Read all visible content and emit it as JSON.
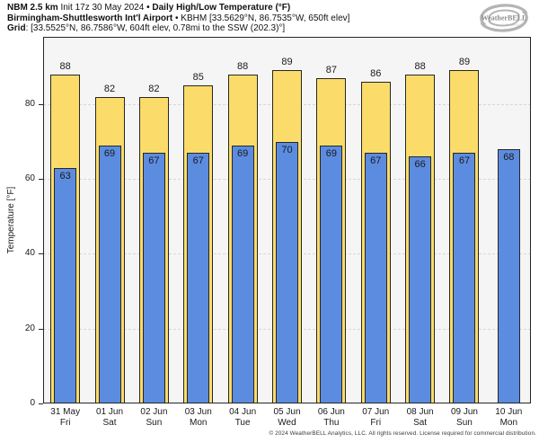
{
  "header": {
    "line1": {
      "model": "NBM 2.5 km",
      "init": " Init 17z 30 May 2024 ",
      "sep": "•",
      "title": " Daily High/Low Temperature (°F)"
    },
    "line2": {
      "station": "Birmingham-Shuttlesworth Int'l Airport",
      "sep": "•",
      "details": " KBHM [33.5629°N, 86.7535°W, 650ft elev]"
    },
    "line3": {
      "label": "Grid",
      "details": ": [33.5525°N, 86.7586°W, 604ft elev, 0.78mi to the SSW (202.3)°]"
    }
  },
  "logo": {
    "name": "WeatherBELL",
    "subtext": "Analytics LLC",
    "icon": "hurricane-swirl-icon",
    "color": "#a8a8a8"
  },
  "chart_data": {
    "type": "bar",
    "title": "Daily High/Low Temperature (°F)",
    "xlabel": "",
    "ylabel": "Temperature [°F]",
    "ylim": [
      0,
      98
    ],
    "yticks": [
      0,
      20,
      40,
      60,
      80
    ],
    "grid": "horizontal dashed at yticks",
    "legend": "none",
    "plot_bg": "#f5f5f5",
    "series": [
      {
        "name": "High",
        "color": "#fbdc6a",
        "border": "#262626"
      },
      {
        "name": "Low",
        "color": "#5c8ce0",
        "border": "#262626"
      }
    ],
    "days": [
      {
        "date": "31 May",
        "weekday": "Fri",
        "high": 88,
        "low": 63
      },
      {
        "date": "01 Jun",
        "weekday": "Sat",
        "high": 82,
        "low": 69
      },
      {
        "date": "02 Jun",
        "weekday": "Sun",
        "high": 82,
        "low": 67
      },
      {
        "date": "03 Jun",
        "weekday": "Mon",
        "high": 85,
        "low": 67
      },
      {
        "date": "04 Jun",
        "weekday": "Tue",
        "high": 88,
        "low": 69
      },
      {
        "date": "05 Jun",
        "weekday": "Wed",
        "high": 89,
        "low": 70
      },
      {
        "date": "06 Jun",
        "weekday": "Thu",
        "high": 87,
        "low": 69
      },
      {
        "date": "07 Jun",
        "weekday": "Fri",
        "high": 86,
        "low": 67
      },
      {
        "date": "08 Jun",
        "weekday": "Sat",
        "high": 88,
        "low": 66
      },
      {
        "date": "09 Jun",
        "weekday": "Sun",
        "high": 89,
        "low": 67
      },
      {
        "date": "10 Jun",
        "weekday": "Mon",
        "high": null,
        "low": 68
      }
    ]
  },
  "footer": {
    "copyright": "© 2024 WeatherBELL Analytics, LLC. All rights reserved. License required for commercial distribution."
  }
}
